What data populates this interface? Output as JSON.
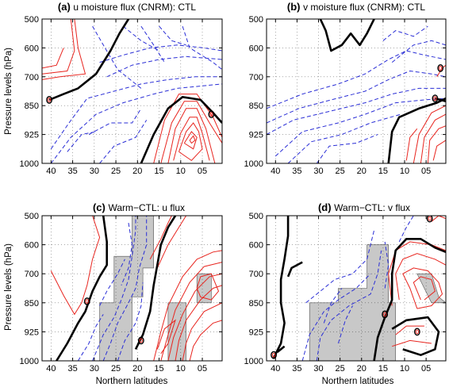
{
  "figure": {
    "ylabel": "Pressure levels (hPa)",
    "xlabel": "Northern latitudes"
  },
  "chart_data": [
    {
      "type": "contour",
      "letter": "(a)",
      "title": "u moisture flux  (CNRM): CTL",
      "x_ticks": [
        "40",
        "35",
        "30",
        "25",
        "20",
        "15",
        "10",
        "05"
      ],
      "y_ticks": [
        "500",
        "600",
        "700",
        "850",
        "925",
        "1000"
      ],
      "x_dir": "latitude decreasing to the right",
      "positive_style": "red solid",
      "negative_style": "blue dashed",
      "zero_style": "black thick",
      "shaded": false
    },
    {
      "type": "contour",
      "letter": "(b)",
      "title": "v moisture flux  (CNRM): CTL",
      "x_ticks": [
        "40",
        "35",
        "30",
        "25",
        "20",
        "15",
        "10",
        "05"
      ],
      "y_ticks": [
        "500",
        "600",
        "700",
        "850",
        "925",
        "1000"
      ],
      "positive_style": "red solid",
      "negative_style": "blue dashed",
      "zero_style": "black thick",
      "shaded": false
    },
    {
      "type": "contour",
      "letter": "(c)",
      "title": "Warm−CTL: u flux",
      "x_ticks": [
        "40",
        "35",
        "30",
        "25",
        "20",
        "15",
        "10",
        "05"
      ],
      "y_ticks": [
        "500",
        "600",
        "700",
        "850",
        "925",
        "1000"
      ],
      "positive_style": "red solid",
      "negative_style": "blue dashed",
      "zero_style": "black thick",
      "shaded": true,
      "shading_color": "#c8c8c8"
    },
    {
      "type": "contour",
      "letter": "(d)",
      "title": "Warm−CTL: v flux",
      "x_ticks": [
        "40",
        "35",
        "30",
        "25",
        "20",
        "15",
        "10",
        "05"
      ],
      "y_ticks": [
        "500",
        "600",
        "700",
        "850",
        "925",
        "1000"
      ],
      "positive_style": "red solid",
      "negative_style": "blue dashed",
      "zero_style": "black thick",
      "shaded": true,
      "shading_color": "#c8c8c8"
    }
  ],
  "colors": {
    "positive": "#e8251f",
    "negative": "#2a2ed6",
    "zero": "#000000",
    "shade": "#c8c8c8"
  }
}
